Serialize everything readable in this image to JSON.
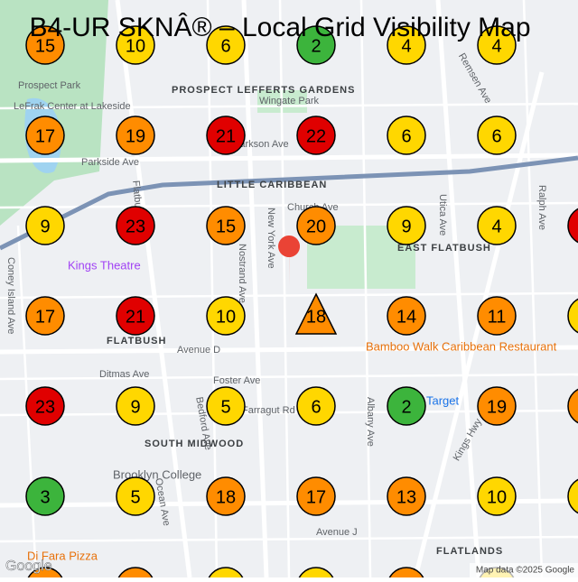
{
  "title": "B4-UR SKNÂ® – Local Grid Visibility Map",
  "grid": {
    "columns_x": [
      50,
      150,
      250,
      350,
      450,
      550
    ],
    "rows": [
      [
        {
          "value": 15,
          "color": "#ff8c00"
        },
        {
          "value": 10,
          "color": "#ffd700"
        },
        {
          "value": 6,
          "color": "#ffd700"
        },
        {
          "value": 2,
          "color": "#3cb43c"
        },
        {
          "value": 4,
          "color": "#ffd700"
        },
        {
          "value": 4,
          "color": "#ffd700"
        }
      ],
      [
        {
          "value": 17,
          "color": "#ff8c00"
        },
        {
          "value": 19,
          "color": "#ff8c00"
        },
        {
          "value": 21,
          "color": "#e00000"
        },
        {
          "value": 22,
          "color": "#e00000"
        },
        {
          "value": 6,
          "color": "#ffd700"
        },
        {
          "value": 6,
          "color": "#ffd700"
        }
      ],
      [
        {
          "value": 9,
          "color": "#ffd700"
        },
        {
          "value": 23,
          "color": "#e00000"
        },
        {
          "value": 15,
          "color": "#ff8c00"
        },
        {
          "value": 20,
          "color": "#ff8c00"
        },
        {
          "value": 9,
          "color": "#ffd700"
        },
        {
          "value": 4,
          "color": "#ffd700"
        }
      ],
      [
        {
          "value": 17,
          "color": "#ff8c00"
        },
        {
          "value": 21,
          "color": "#e00000"
        },
        {
          "value": 10,
          "color": "#ffd700"
        },
        {
          "value": 18,
          "color": "#ff8c00",
          "shape": "triangle"
        },
        {
          "value": 14,
          "color": "#ff8c00"
        },
        {
          "value": 11,
          "color": "#ff8c00"
        }
      ],
      [
        {
          "value": 23,
          "color": "#e00000"
        },
        {
          "value": 9,
          "color": "#ffd700"
        },
        {
          "value": 5,
          "color": "#ffd700"
        },
        {
          "value": 6,
          "color": "#ffd700"
        },
        {
          "value": 2,
          "color": "#3cb43c"
        },
        {
          "value": 19,
          "color": "#ff8c00"
        }
      ],
      [
        {
          "value": 3,
          "color": "#3cb43c"
        },
        {
          "value": 5,
          "color": "#ffd700"
        },
        {
          "value": 18,
          "color": "#ff8c00"
        },
        {
          "value": 17,
          "color": "#ff8c00"
        },
        {
          "value": 13,
          "color": "#ff8c00"
        },
        {
          "value": 10,
          "color": "#ffd700"
        }
      ]
    ]
  },
  "map_labels": [
    "Prospect Park",
    "LeFrak Center at Lakeside",
    "PROSPECT LEFFERTS GARDENS",
    "Wingate Park",
    "LITTLE CARIBBEAN",
    "EAST FLATBUSH",
    "Kings Theatre",
    "FLATBUSH",
    "Bamboo Walk Caribbean Restaurant",
    "Target",
    "SOUTH MIDWOOD",
    "Brooklyn College",
    "Di Fara Pizza",
    "FLATLANDS",
    "Clarkson Ave",
    "Church Ave",
    "Avenue D",
    "Foster Ave",
    "Farragut Rd",
    "Ditmas Ave",
    "Avenue J",
    "Parkside Ave",
    "Utica Ave",
    "Albany Ave",
    "Nostrand Ave",
    "New York Ave",
    "Bedford Ave",
    "Flatbush Ave",
    "Kings Hwy",
    "Ralph Ave",
    "Remsen Ave",
    "Coney Island Ave",
    "Ocean Ave"
  ],
  "footer": {
    "logo": "Google",
    "attribution": "Map data ©2025 Google"
  }
}
